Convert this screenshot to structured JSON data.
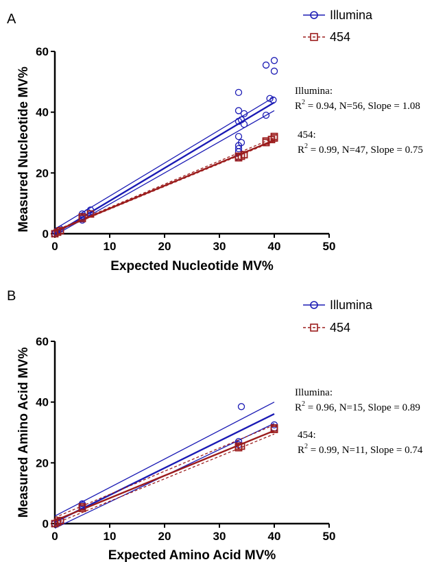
{
  "chart_data": [
    {
      "panel": "A",
      "type": "scatter",
      "xlabel": "Expected Nucleotide MV%",
      "ylabel": "Measured Nucleotide MV%",
      "xlim": [
        0,
        50
      ],
      "ylim": [
        0,
        60
      ],
      "xticks": [
        "0",
        "10",
        "20",
        "30",
        "40",
        "50"
      ],
      "yticks": [
        "0",
        "20",
        "40",
        "60"
      ],
      "legend": {
        "position": "top-right",
        "entries": [
          "Illumina",
          "454"
        ]
      },
      "series": [
        {
          "name": "Illumina",
          "color": "#1a1ab4",
          "marker": "circle",
          "points": [
            [
              0,
              0
            ],
            [
              0.2,
              0.5
            ],
            [
              0.5,
              1
            ],
            [
              1,
              1.5
            ],
            [
              5,
              4.5
            ],
            [
              5,
              5.2
            ],
            [
              5,
              5.8
            ],
            [
              5,
              6.5
            ],
            [
              6,
              7
            ],
            [
              6.5,
              7.8
            ],
            [
              33.5,
              25
            ],
            [
              33.5,
              27
            ],
            [
              33.5,
              28
            ],
            [
              33.5,
              29
            ],
            [
              33.5,
              32
            ],
            [
              33.5,
              37
            ],
            [
              33.5,
              40.5
            ],
            [
              33.5,
              46.5
            ],
            [
              34,
              30
            ],
            [
              34,
              37.5
            ],
            [
              34.5,
              36
            ],
            [
              34.5,
              39.5
            ],
            [
              38.5,
              39
            ],
            [
              38.5,
              55.5
            ],
            [
              39.2,
              44.5
            ],
            [
              39.8,
              44
            ],
            [
              40,
              53.5
            ],
            [
              40,
              57
            ]
          ],
          "fit": {
            "slope": 1.08,
            "intercept": 0,
            "ci_lower": [
              [
                0,
                -0.5
              ],
              [
                40,
                40.5
              ]
            ],
            "ci_upper": [
              [
                0,
                1.5
              ],
              [
                40,
                45
              ]
            ]
          }
        },
        {
          "name": "454",
          "color": "#9b1c1c",
          "marker": "square",
          "points": [
            [
              0,
              0
            ],
            [
              0.5,
              0.5
            ],
            [
              1,
              1
            ],
            [
              5,
              5
            ],
            [
              5,
              5.5
            ],
            [
              6.5,
              6.5
            ],
            [
              33.5,
              25
            ],
            [
              33.5,
              25.5
            ],
            [
              34,
              25.5
            ],
            [
              34.5,
              26
            ],
            [
              38.5,
              30
            ],
            [
              38.5,
              30.5
            ],
            [
              39.5,
              31
            ],
            [
              40,
              31.5
            ],
            [
              40,
              32
            ]
          ],
          "fit": {
            "slope": 0.75,
            "intercept": 0.8,
            "ci_lower": [
              [
                0,
                0.6
              ],
              [
                40,
                30.5
              ]
            ],
            "ci_upper": [
              [
                0,
                1
              ],
              [
                40,
                31.6
              ]
            ]
          }
        }
      ],
      "annotations": [
        {
          "label": "Illumina:",
          "r2": "= 0.94, N=56, Slope = 1.08"
        },
        {
          "label": "454:",
          "r2": "= 0.99, N=47, Slope = 0.75"
        }
      ]
    },
    {
      "panel": "B",
      "type": "scatter",
      "xlabel": "Expected Amino Acid MV%",
      "ylabel": "Measured Amino Acid MV%",
      "xlim": [
        0,
        50
      ],
      "ylim": [
        0,
        60
      ],
      "xticks": [
        "0",
        "10",
        "20",
        "30",
        "40",
        "50"
      ],
      "yticks": [
        "0",
        "20",
        "40",
        "60"
      ],
      "legend": {
        "position": "top-right",
        "entries": [
          "Illumina",
          "454"
        ]
      },
      "series": [
        {
          "name": "Illumina",
          "color": "#1a1ab4",
          "marker": "circle",
          "points": [
            [
              0,
              0
            ],
            [
              0.5,
              0.5
            ],
            [
              1,
              1
            ],
            [
              5,
              5.5
            ],
            [
              5,
              6
            ],
            [
              5,
              6.5
            ],
            [
              33.5,
              26
            ],
            [
              33.5,
              27
            ],
            [
              34,
              38.5
            ],
            [
              40,
              31.5
            ],
            [
              40,
              32.5
            ]
          ],
          "fit": {
            "slope": 0.89,
            "intercept": 0.5,
            "ci_lower": [
              [
                0,
                -1.5
              ],
              [
                40,
                33
              ]
            ],
            "ci_upper": [
              [
                0,
                2.5
              ],
              [
                40,
                40
              ]
            ]
          }
        },
        {
          "name": "454",
          "color": "#9b1c1c",
          "marker": "square",
          "points": [
            [
              0,
              0
            ],
            [
              0.5,
              0.5
            ],
            [
              1,
              1
            ],
            [
              5,
              5
            ],
            [
              5,
              5.5
            ],
            [
              33.5,
              25
            ],
            [
              33.5,
              25.5
            ],
            [
              34,
              25.5
            ],
            [
              40,
              31
            ],
            [
              40,
              31.5
            ]
          ],
          "fit": {
            "slope": 0.74,
            "intercept": 1,
            "ci_lower": [
              [
                0,
                0
              ],
              [
                40,
                29.5
              ]
            ],
            "ci_upper": [
              [
                0,
                2
              ],
              [
                40,
                32.5
              ]
            ]
          }
        }
      ],
      "annotations": [
        {
          "label": "Illumina:",
          "r2": "= 0.96, N=15, Slope = 0.89"
        },
        {
          "label": "454:",
          "r2": "= 0.99, N=11, Slope = 0.74"
        }
      ]
    }
  ]
}
